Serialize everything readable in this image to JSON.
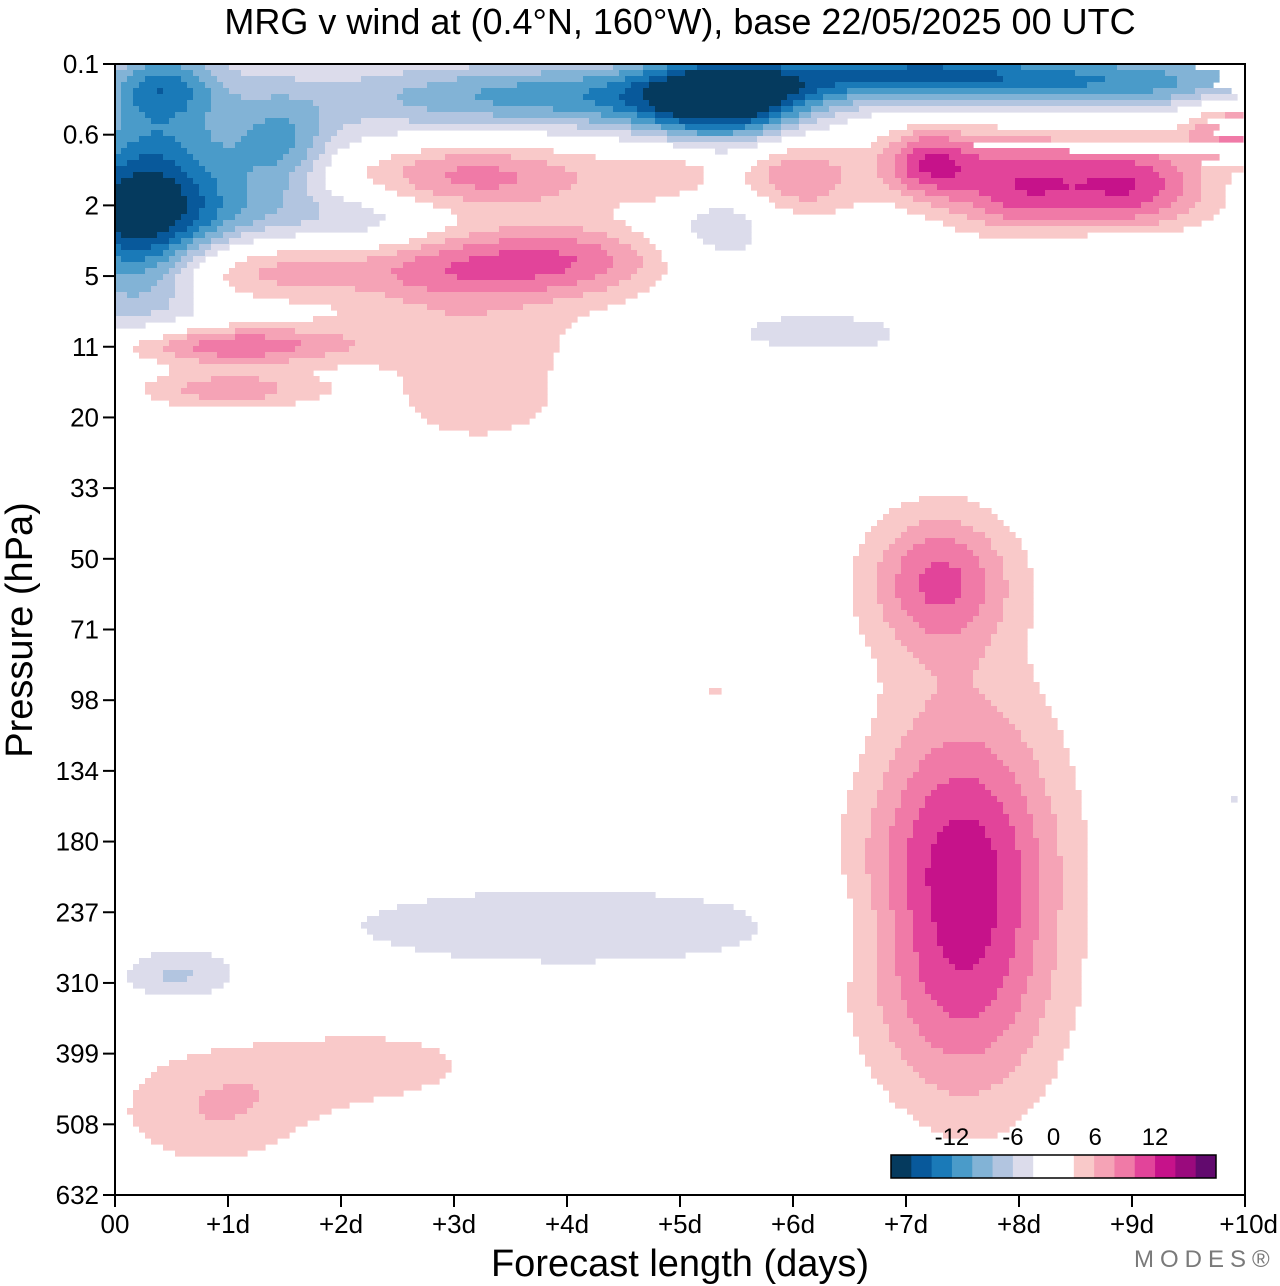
{
  "chart_data": {
    "type": "heatmap",
    "title": "MRG v wind at (0.4°N, 160°W),  base 22/05/2025  00 UTC",
    "xlabel": "Forecast length (days)",
    "ylabel": "Pressure (hPa)",
    "x_tick_labels": [
      "00",
      "+1d",
      "+2d",
      "+3d",
      "+4d",
      "+5d",
      "+6d",
      "+7d",
      "+8d",
      "+9d",
      "+10d"
    ],
    "y_tick_labels": [
      "0.1",
      "0.6",
      "2",
      "5",
      "11",
      "20",
      "33",
      "50",
      "71",
      "98",
      "134",
      "180",
      "237",
      "310",
      "399",
      "508",
      "632"
    ],
    "xlim": [
      0,
      10
    ],
    "colorbar": {
      "tick_labels": [
        "-12",
        "-6",
        "0",
        "6",
        "12"
      ],
      "colors": [
        "#053a5e",
        "#08599b",
        "#1a7ab8",
        "#4a9bc9",
        "#82b3d6",
        "#b2c5e0",
        "#dcdceb",
        "#ffffff",
        "#ffffff",
        "#f9c9c9",
        "#f5a3b6",
        "#f07aa7",
        "#e2449a",
        "#c6128a",
        "#9a0a7d",
        "#620a6e"
      ]
    },
    "features": [
      {
        "x": 0.2,
        "level": 2.2,
        "value": -12,
        "sx": 0.45,
        "sy": 0.9
      },
      {
        "x": 1.0,
        "level": 2.0,
        "value": -8,
        "sx": 0.9,
        "sy": 1.2
      },
      {
        "x": 2.0,
        "level": 2.4,
        "value": -5,
        "sx": 0.7,
        "sy": 0.8
      },
      {
        "x": 5.3,
        "level": 2.0,
        "value": -5,
        "sx": 0.45,
        "sy": 0.75
      },
      {
        "x": 5.3,
        "level": 9.2,
        "value": 4,
        "sx": 0.4,
        "sy": 0.6
      },
      {
        "x": 3.2,
        "level": 4.6,
        "value": 3,
        "sx": 0.7,
        "sy": 0.7
      },
      {
        "x": 7.5,
        "level": 11.8,
        "value": 12,
        "sx": 0.6,
        "sy": 1.9
      },
      {
        "x": 7.3,
        "level": 7.3,
        "value": 8,
        "sx": 0.45,
        "sy": 0.7
      },
      {
        "x": 0.9,
        "level": 14.8,
        "value": 4,
        "sx": 0.65,
        "sy": 0.6
      },
      {
        "x": 2.3,
        "level": 14.2,
        "value": 3,
        "sx": 0.8,
        "sy": 0.45
      },
      {
        "x": 0.9,
        "level": 8.4,
        "value": 2,
        "sx": 0.6,
        "sy": 0.25
      },
      {
        "x": 1.6,
        "level": 1.8,
        "value": 4,
        "sx": 0.45,
        "sy": 0.8
      },
      {
        "x": 0.4,
        "level": 0.3,
        "value": -8,
        "sx": 0.35,
        "sy": 0.35
      },
      {
        "x": 3.9,
        "level": 0.45,
        "value": -9,
        "sx": 1.3,
        "sy": 0.35
      },
      {
        "x": 5.4,
        "level": 0.45,
        "value": -15,
        "sx": 0.55,
        "sy": 0.4
      },
      {
        "x": 7.0,
        "level": 0.15,
        "value": -11,
        "sx": 0.85,
        "sy": 0.25
      },
      {
        "x": 8.9,
        "level": 0.25,
        "value": -9,
        "sx": 1.1,
        "sy": 0.3
      },
      {
        "x": 1.5,
        "level": 1.2,
        "value": -6,
        "sx": 0.3,
        "sy": 0.5
      },
      {
        "x": 2.9,
        "level": 1.6,
        "value": 8,
        "sx": 1.0,
        "sy": 0.35
      },
      {
        "x": 5.0,
        "level": 1.6,
        "value": 6,
        "sx": 0.35,
        "sy": 0.35
      },
      {
        "x": 6.0,
        "level": 1.6,
        "value": 7,
        "sx": 0.4,
        "sy": 0.4
      },
      {
        "x": 7.2,
        "level": 1.4,
        "value": 9,
        "sx": 0.3,
        "sy": 0.35
      },
      {
        "x": 8.0,
        "level": 1.7,
        "value": 9,
        "sx": 0.45,
        "sy": 0.5
      },
      {
        "x": 9.0,
        "level": 1.7,
        "value": 9,
        "sx": 0.45,
        "sy": 0.45
      },
      {
        "x": 9.9,
        "level": 0.9,
        "value": 7,
        "sx": 0.3,
        "sy": 0.3
      },
      {
        "x": 2.4,
        "level": 2.9,
        "value": 10,
        "sx": 1.3,
        "sy": 0.4
      },
      {
        "x": 1.0,
        "level": 2.9,
        "value": 5,
        "sx": 0.6,
        "sy": 0.4
      },
      {
        "x": 4.1,
        "level": 2.7,
        "value": 4,
        "sx": 0.7,
        "sy": 0.35
      },
      {
        "x": 1.0,
        "level": 4.0,
        "value": 8,
        "sx": 0.7,
        "sy": 0.2
      },
      {
        "x": 1.0,
        "level": 4.6,
        "value": 6,
        "sx": 0.6,
        "sy": 0.2
      },
      {
        "x": 2.0,
        "level": 3.8,
        "value": 3,
        "sx": 1.2,
        "sy": 0.3
      },
      {
        "x": 8.9,
        "level": 2.8,
        "value": -5,
        "sx": 0.9,
        "sy": 0.35
      },
      {
        "x": 6.3,
        "level": 3.8,
        "value": -3,
        "sx": 0.7,
        "sy": 0.25
      },
      {
        "x": 9.2,
        "level": 3.1,
        "value": 3,
        "sx": 1.1,
        "sy": 0.7
      },
      {
        "x": 0.55,
        "level": 12.9,
        "value": -4,
        "sx": 0.35,
        "sy": 0.25
      },
      {
        "x": 4.0,
        "level": 12.2,
        "value": -3,
        "sx": 2.0,
        "sy": 0.55
      },
      {
        "x": 5.3,
        "level": 9.6,
        "value": -3,
        "sx": 0.6,
        "sy": 0.6
      },
      {
        "x": 9.9,
        "level": 12.0,
        "value": -3,
        "sx": 0.4,
        "sy": 1.8
      },
      {
        "x": 4.6,
        "level": 15.4,
        "value": -2,
        "sx": 1.6,
        "sy": 0.55
      }
    ]
  },
  "brand_label": "MODES®"
}
